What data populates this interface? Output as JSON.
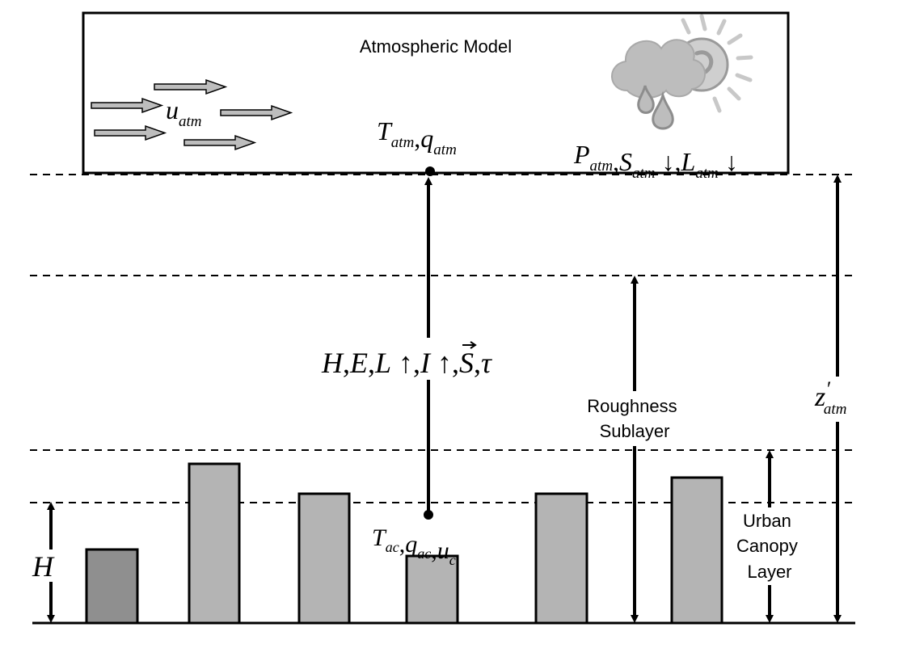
{
  "atmosphere": {
    "title": "Atmospheric Model",
    "wind_label": {
      "base": "u",
      "sub": "atm"
    },
    "temp_label": [
      {
        "base": "T",
        "sub": "atm"
      },
      {
        "sep": ","
      },
      {
        "base": "q",
        "sub": "atm"
      }
    ],
    "forcing_label": [
      {
        "base": "P",
        "sub": "atm"
      },
      {
        "sep": ","
      },
      {
        "base": "S",
        "sub": "atm",
        "suffix": " ↓"
      },
      {
        "sep": ","
      },
      {
        "base": "L",
        "sub": "atm",
        "suffix": " ↓"
      }
    ],
    "weather_icon": "sun-cloud-rain-icon"
  },
  "fluxes": {
    "label_parts": [
      "H",
      ",",
      "E",
      ",",
      "L",
      " ↑",
      ",",
      "I",
      " ↑",
      ",",
      "S",
      ",",
      "τ"
    ],
    "vector_symbol": "S"
  },
  "canopy_air": {
    "label": [
      {
        "base": "T",
        "sub": "ac"
      },
      {
        "sep": ","
      },
      {
        "base": "q",
        "sub": "ac"
      },
      {
        "sep": ","
      },
      {
        "base": "u",
        "sub": "c"
      }
    ]
  },
  "layers": {
    "roughness_sublayer": [
      "Roughness",
      "Sublayer"
    ],
    "urban_canopy_layer": [
      "Urban",
      "Canopy",
      "Layer"
    ]
  },
  "heights": {
    "building_height": "H",
    "z_atm": {
      "base": "z",
      "prime": "′",
      "sub": "atm"
    }
  },
  "colors": {
    "line": "#000000",
    "building_light": "#b4b4b4",
    "building_dark": "#8f8f8f",
    "arrow_fill": "#bdbdbd",
    "cloud": "#bdbdbd"
  }
}
